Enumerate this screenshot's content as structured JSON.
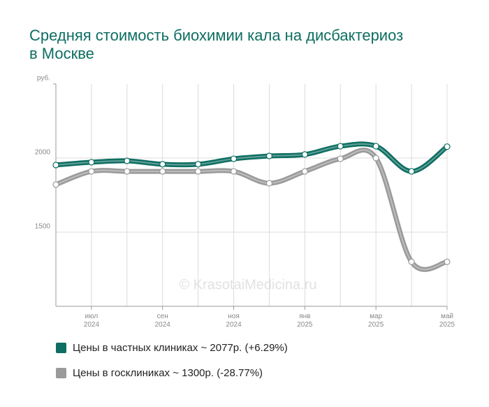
{
  "chart_data": {
    "type": "line",
    "title": "Средняя стоимость биохимии кала на дисбактериоз в Москве",
    "categories": [
      null,
      "июл 2024",
      null,
      "сен 2024",
      null,
      "ноя 2024",
      null,
      "янв 2025",
      null,
      "мар 2025",
      null,
      "май 2025"
    ],
    "series": [
      {
        "name": "Цены в частных клиниках ~ 2077р. (+6.29%)",
        "color": "#0e6e62",
        "values": [
          1953,
          1972,
          1981,
          1958,
          1958,
          1995,
          2014,
          2024,
          2080,
          2080,
          1910,
          2077
        ]
      },
      {
        "name": "Цены в госклиниках ~ 1300р. (-28.77%)",
        "color": "#9a9a9a",
        "values": [
          1821,
          1910,
          1910,
          1910,
          1910,
          1910,
          1830,
          1910,
          1995,
          2000,
          1300,
          1300
        ]
      }
    ],
    "ylim": [
      1000,
      2500
    ],
    "yticks": [
      1500,
      2000,
      {
        "value": 2500,
        "label": "руб."
      }
    ],
    "grid": true,
    "watermark": "© KrasotaiMedicina.ru"
  }
}
